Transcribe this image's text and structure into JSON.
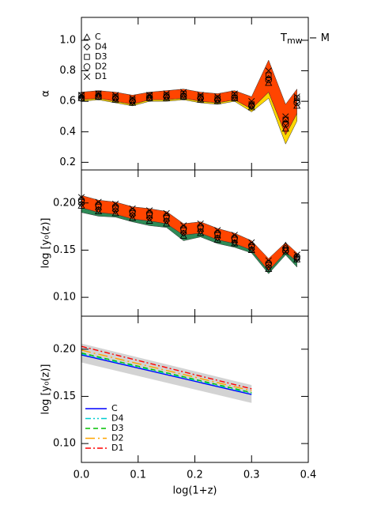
{
  "chart_data": [
    {
      "type": "scatter",
      "ylabel": "α",
      "annotation": {
        "main": "T",
        "sub": "mw",
        "rest": "− M"
      },
      "legend": "upper left",
      "xlim": [
        0,
        0.4
      ],
      "xticks": [
        0,
        0.1,
        0.2,
        0.3,
        0.4
      ],
      "ylim": [
        0.15,
        1.15
      ],
      "yticks": [
        0.2,
        0.4,
        0.6,
        0.8,
        {
          "value": 1,
          "label": "1.0"
        }
      ],
      "x": [
        0,
        0.03,
        0.06,
        0.09,
        0.12,
        0.15,
        0.18,
        0.21,
        0.24,
        0.27,
        0.3,
        0.33,
        0.36,
        0.38
      ],
      "bands": [
        {
          "color": "#ffd700",
          "lower": [
            0.6,
            0.61,
            0.59,
            0.57,
            0.6,
            0.6,
            0.61,
            0.59,
            0.58,
            0.6,
            0.53,
            0.62,
            0.32,
            0.47
          ],
          "upper": [
            0.61,
            0.62,
            0.6,
            0.58,
            0.61,
            0.61,
            0.62,
            0.6,
            0.59,
            0.61,
            0.55,
            0.66,
            0.38,
            0.52
          ]
        },
        {
          "color": "#ff4500",
          "lower": [
            0.61,
            0.62,
            0.6,
            0.58,
            0.61,
            0.61,
            0.62,
            0.6,
            0.59,
            0.61,
            0.55,
            0.66,
            0.38,
            0.52
          ],
          "upper": [
            0.66,
            0.67,
            0.66,
            0.64,
            0.66,
            0.67,
            0.68,
            0.66,
            0.65,
            0.67,
            0.63,
            0.87,
            0.58,
            0.68
          ]
        }
      ],
      "series": [
        {
          "name": "C",
          "marker": "triangle",
          "values": [
            0.62,
            0.63,
            0.61,
            0.59,
            0.62,
            0.62,
            0.63,
            0.61,
            0.6,
            0.62,
            0.56,
            0.72,
            0.42,
            0.57
          ]
        },
        {
          "name": "D4",
          "marker": "diamond",
          "values": [
            0.63,
            0.64,
            0.62,
            0.6,
            0.63,
            0.63,
            0.64,
            0.62,
            0.61,
            0.63,
            0.57,
            0.75,
            0.46,
            0.6
          ]
        },
        {
          "name": "D3",
          "marker": "square",
          "values": [
            0.64,
            0.65,
            0.63,
            0.61,
            0.64,
            0.64,
            0.65,
            0.63,
            0.62,
            0.64,
            0.58,
            0.77,
            0.48,
            0.62
          ]
        },
        {
          "name": "D2",
          "marker": "circle",
          "values": [
            0.62,
            0.63,
            0.62,
            0.6,
            0.62,
            0.63,
            0.63,
            0.62,
            0.61,
            0.62,
            0.57,
            0.74,
            0.45,
            0.59
          ]
        },
        {
          "name": "D1",
          "marker": "x",
          "values": [
            0.64,
            0.65,
            0.64,
            0.62,
            0.64,
            0.65,
            0.66,
            0.64,
            0.63,
            0.65,
            0.6,
            0.8,
            0.5,
            0.63
          ]
        }
      ]
    },
    {
      "type": "scatter",
      "ylabel": "log [y₀(z)]",
      "xlim": [
        0,
        0.4
      ],
      "xticks": [
        0,
        0.1,
        0.2,
        0.3,
        0.4
      ],
      "ylim": [
        0.08,
        0.235
      ],
      "yticks": [
        {
          "value": 0.1,
          "label": "0.10"
        },
        0.15,
        {
          "value": 0.2,
          "label": "0.20"
        }
      ],
      "x": [
        0,
        0.03,
        0.06,
        0.09,
        0.12,
        0.15,
        0.18,
        0.21,
        0.24,
        0.27,
        0.3,
        0.33,
        0.36,
        0.38
      ],
      "bands": [
        {
          "color": "#2e8b57",
          "lower": [
            0.19,
            0.186,
            0.185,
            0.18,
            0.176,
            0.174,
            0.16,
            0.164,
            0.157,
            0.153,
            0.147,
            0.125,
            0.145,
            0.132
          ],
          "upper": [
            0.195,
            0.19,
            0.188,
            0.183,
            0.181,
            0.178,
            0.166,
            0.168,
            0.161,
            0.157,
            0.15,
            0.128,
            0.148,
            0.138
          ]
        },
        {
          "color": "#ff4500",
          "lower": [
            0.195,
            0.19,
            0.188,
            0.183,
            0.181,
            0.178,
            0.166,
            0.168,
            0.161,
            0.157,
            0.15,
            0.128,
            0.148,
            0.138
          ],
          "upper": [
            0.208,
            0.203,
            0.201,
            0.196,
            0.194,
            0.191,
            0.178,
            0.18,
            0.173,
            0.168,
            0.16,
            0.141,
            0.158,
            0.147
          ]
        }
      ],
      "series": [
        {
          "marker": "triangle",
          "values": [
            0.197,
            0.191,
            0.189,
            0.184,
            0.181,
            0.178,
            0.165,
            0.168,
            0.161,
            0.157,
            0.15,
            0.13,
            0.155,
            0.14
          ]
        },
        {
          "marker": "diamond",
          "values": [
            0.199,
            0.193,
            0.192,
            0.187,
            0.184,
            0.181,
            0.168,
            0.17,
            0.163,
            0.158,
            0.151,
            0.132,
            0.152,
            0.141
          ]
        },
        {
          "marker": "square",
          "values": [
            0.201,
            0.196,
            0.194,
            0.189,
            0.187,
            0.184,
            0.171,
            0.173,
            0.166,
            0.161,
            0.153,
            0.134,
            0.15,
            0.142
          ]
        },
        {
          "marker": "circle",
          "values": [
            0.203,
            0.198,
            0.196,
            0.191,
            0.189,
            0.186,
            0.173,
            0.175,
            0.168,
            0.163,
            0.155,
            0.136,
            0.149,
            0.143
          ]
        },
        {
          "marker": "x",
          "values": [
            0.206,
            0.201,
            0.199,
            0.194,
            0.192,
            0.189,
            0.176,
            0.178,
            0.171,
            0.166,
            0.158,
            0.139,
            0.148,
            0.145
          ]
        }
      ]
    },
    {
      "type": "line",
      "ylabel": "log [y₀(z)]",
      "xlabel": "log(1+z)",
      "legend": "lower left",
      "xlim": [
        0,
        0.4
      ],
      "xticks": [
        {
          "value": 0,
          "label": "0.0"
        },
        0.1,
        0.2,
        0.3,
        0.4
      ],
      "ylim": [
        0.08,
        0.235
      ],
      "yticks": [
        {
          "value": 0.1,
          "label": "0.10"
        },
        0.15,
        {
          "value": 0.2,
          "label": "0.20"
        }
      ],
      "x": [
        0,
        0.3
      ],
      "bands": [
        {
          "color": "#d3d3d3",
          "lower": [
            0.186,
            0.143
          ],
          "upper": [
            0.206,
            0.162
          ]
        }
      ],
      "series": [
        {
          "name": "C",
          "color": "#0000ff",
          "dash": "solid",
          "values": [
            0.194,
            0.152
          ]
        },
        {
          "name": "D4",
          "color": "#00ced1",
          "dash": "dash-dot-dot",
          "values": [
            0.195,
            0.153
          ]
        },
        {
          "name": "D3",
          "color": "#00c000",
          "dash": "dashed",
          "values": [
            0.196,
            0.154
          ]
        },
        {
          "name": "D2",
          "color": "#ffa500",
          "dash": "long-dash-dot",
          "values": [
            0.199,
            0.156
          ]
        },
        {
          "name": "D1",
          "color": "#ff0000",
          "dash": "dash-dot",
          "values": [
            0.203,
            0.158
          ]
        }
      ]
    }
  ]
}
